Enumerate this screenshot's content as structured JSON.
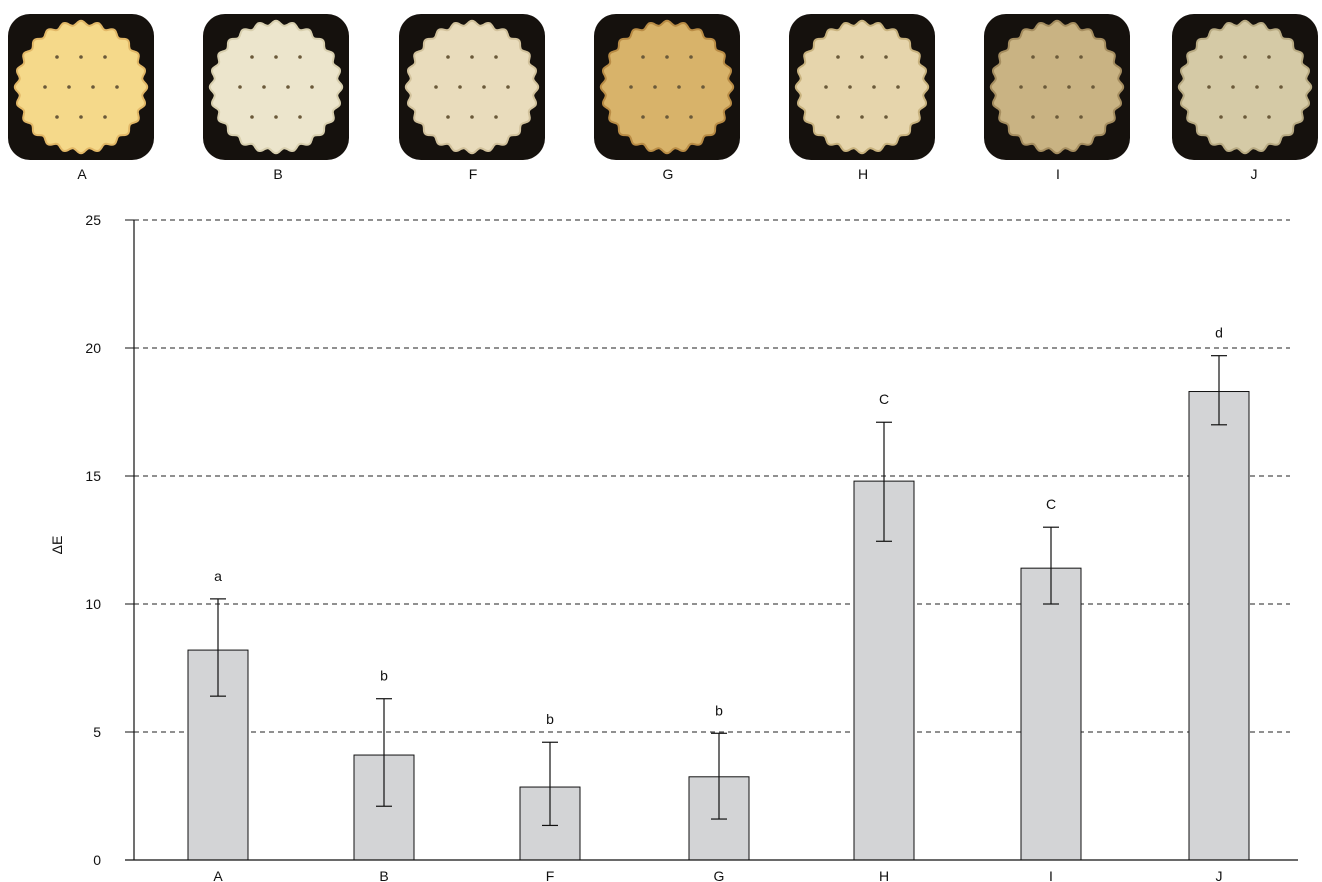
{
  "photos": [
    {
      "label": "A",
      "fill": "#f5d98a",
      "edge": "#e2b867"
    },
    {
      "label": "B",
      "fill": "#ece5cc",
      "edge": "#d8cfae"
    },
    {
      "label": "F",
      "fill": "#e9dcbc",
      "edge": "#d2c29c"
    },
    {
      "label": "G",
      "fill": "#d8b36a",
      "edge": "#b98c45"
    },
    {
      "label": "H",
      "fill": "#e6d5ac",
      "edge": "#c8b27e"
    },
    {
      "label": "I",
      "fill": "#c9b383",
      "edge": "#a58d5f"
    },
    {
      "label": "J",
      "fill": "#d5caa6",
      "edge": "#b8aa82"
    }
  ],
  "chart_data": {
    "type": "bar",
    "categories": [
      "A",
      "B",
      "F",
      "G",
      "H",
      "I",
      "J"
    ],
    "values": [
      8.2,
      4.1,
      2.85,
      3.25,
      14.8,
      11.4,
      18.3
    ],
    "error_low": [
      6.4,
      2.1,
      1.35,
      1.6,
      12.45,
      10.0,
      17.0
    ],
    "error_high": [
      10.2,
      6.3,
      4.6,
      4.95,
      17.1,
      13.0,
      19.7
    ],
    "significance": [
      "a",
      "b",
      "b",
      "b",
      "C",
      "C",
      "d"
    ],
    "ylabel": "ΔE",
    "xlabel": "",
    "title": "",
    "ylim": [
      0,
      25
    ],
    "yticks": [
      0,
      5,
      10,
      15,
      20,
      25
    ],
    "grid": true,
    "bar_color": "#d3d4d6",
    "bar_edge": "#111111"
  }
}
